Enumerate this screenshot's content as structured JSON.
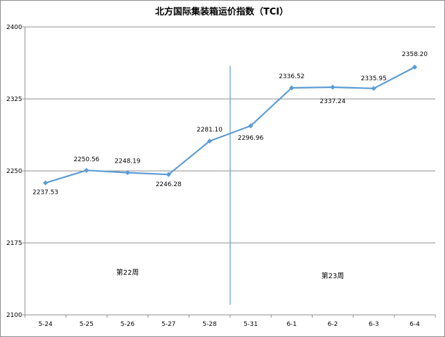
{
  "chart_data": {
    "type": "line",
    "title": "北方国际集装箱运价指数（TCI）",
    "categories": [
      "5-24",
      "5-25",
      "5-26",
      "5-27",
      "5-28",
      "5-31",
      "6-1",
      "6-2",
      "6-3",
      "6-4"
    ],
    "values": [
      2237.53,
      2250.56,
      2248.19,
      2246.28,
      2281.1,
      2296.96,
      2336.52,
      2337.24,
      2335.95,
      2358.2
    ],
    "data_labels": [
      "2237.53",
      "2250.56",
      "2248.19",
      "2246.28",
      "2281.10",
      "2296.96",
      "2336.52",
      "2337.24",
      "2335.95",
      "2358.20"
    ],
    "ylim": [
      2100,
      2400
    ],
    "yticks": [
      2100,
      2175,
      2250,
      2325,
      2400
    ],
    "xlabel": "",
    "ylabel": "",
    "grid": "horizontal",
    "legend": "none",
    "series_color": "#5b9bd5",
    "divider_color": "#5b9bd5",
    "annotations": [
      {
        "text": "第22周",
        "x_category_center": 2
      },
      {
        "text": "第23周",
        "x_category_center": 7
      }
    ]
  }
}
